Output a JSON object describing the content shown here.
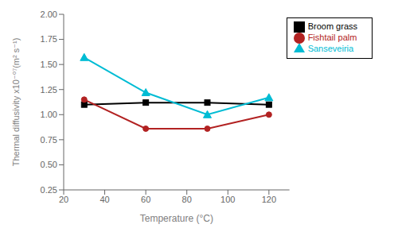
{
  "chart_data": {
    "type": "line",
    "x": [
      30,
      60,
      90,
      120
    ],
    "series": [
      {
        "name": "Broom grass",
        "color": "#000000",
        "marker": "square",
        "values": [
          1.1,
          1.12,
          1.12,
          1.1
        ]
      },
      {
        "name": "Fishtail palm",
        "color": "#b22222",
        "marker": "circle",
        "values": [
          1.15,
          0.86,
          0.86,
          1.0
        ]
      },
      {
        "name": "Sanseveiria",
        "color": "#00bcd4",
        "marker": "triangle",
        "values": [
          1.57,
          1.22,
          1.0,
          1.17
        ]
      }
    ],
    "xlabel": "Temperature (°C)",
    "ylabel": "Thermal diffusivity x10⁻⁰⁷(m² s⁻¹)",
    "xlim": [
      20,
      130
    ],
    "ylim": [
      0.25,
      2.0
    ],
    "xticks": [
      20,
      40,
      60,
      80,
      100,
      120
    ],
    "yticks": [
      0.25,
      {
        "value": 0.5,
        "label": "0.50"
      },
      0.75,
      {
        "value": 1.0,
        "label": "1.00"
      },
      1.25,
      {
        "value": 1.5,
        "label": "1.50"
      },
      1.75,
      {
        "value": 2.0,
        "label": "2.00"
      }
    ],
    "legend": "upper right",
    "grid": false
  }
}
